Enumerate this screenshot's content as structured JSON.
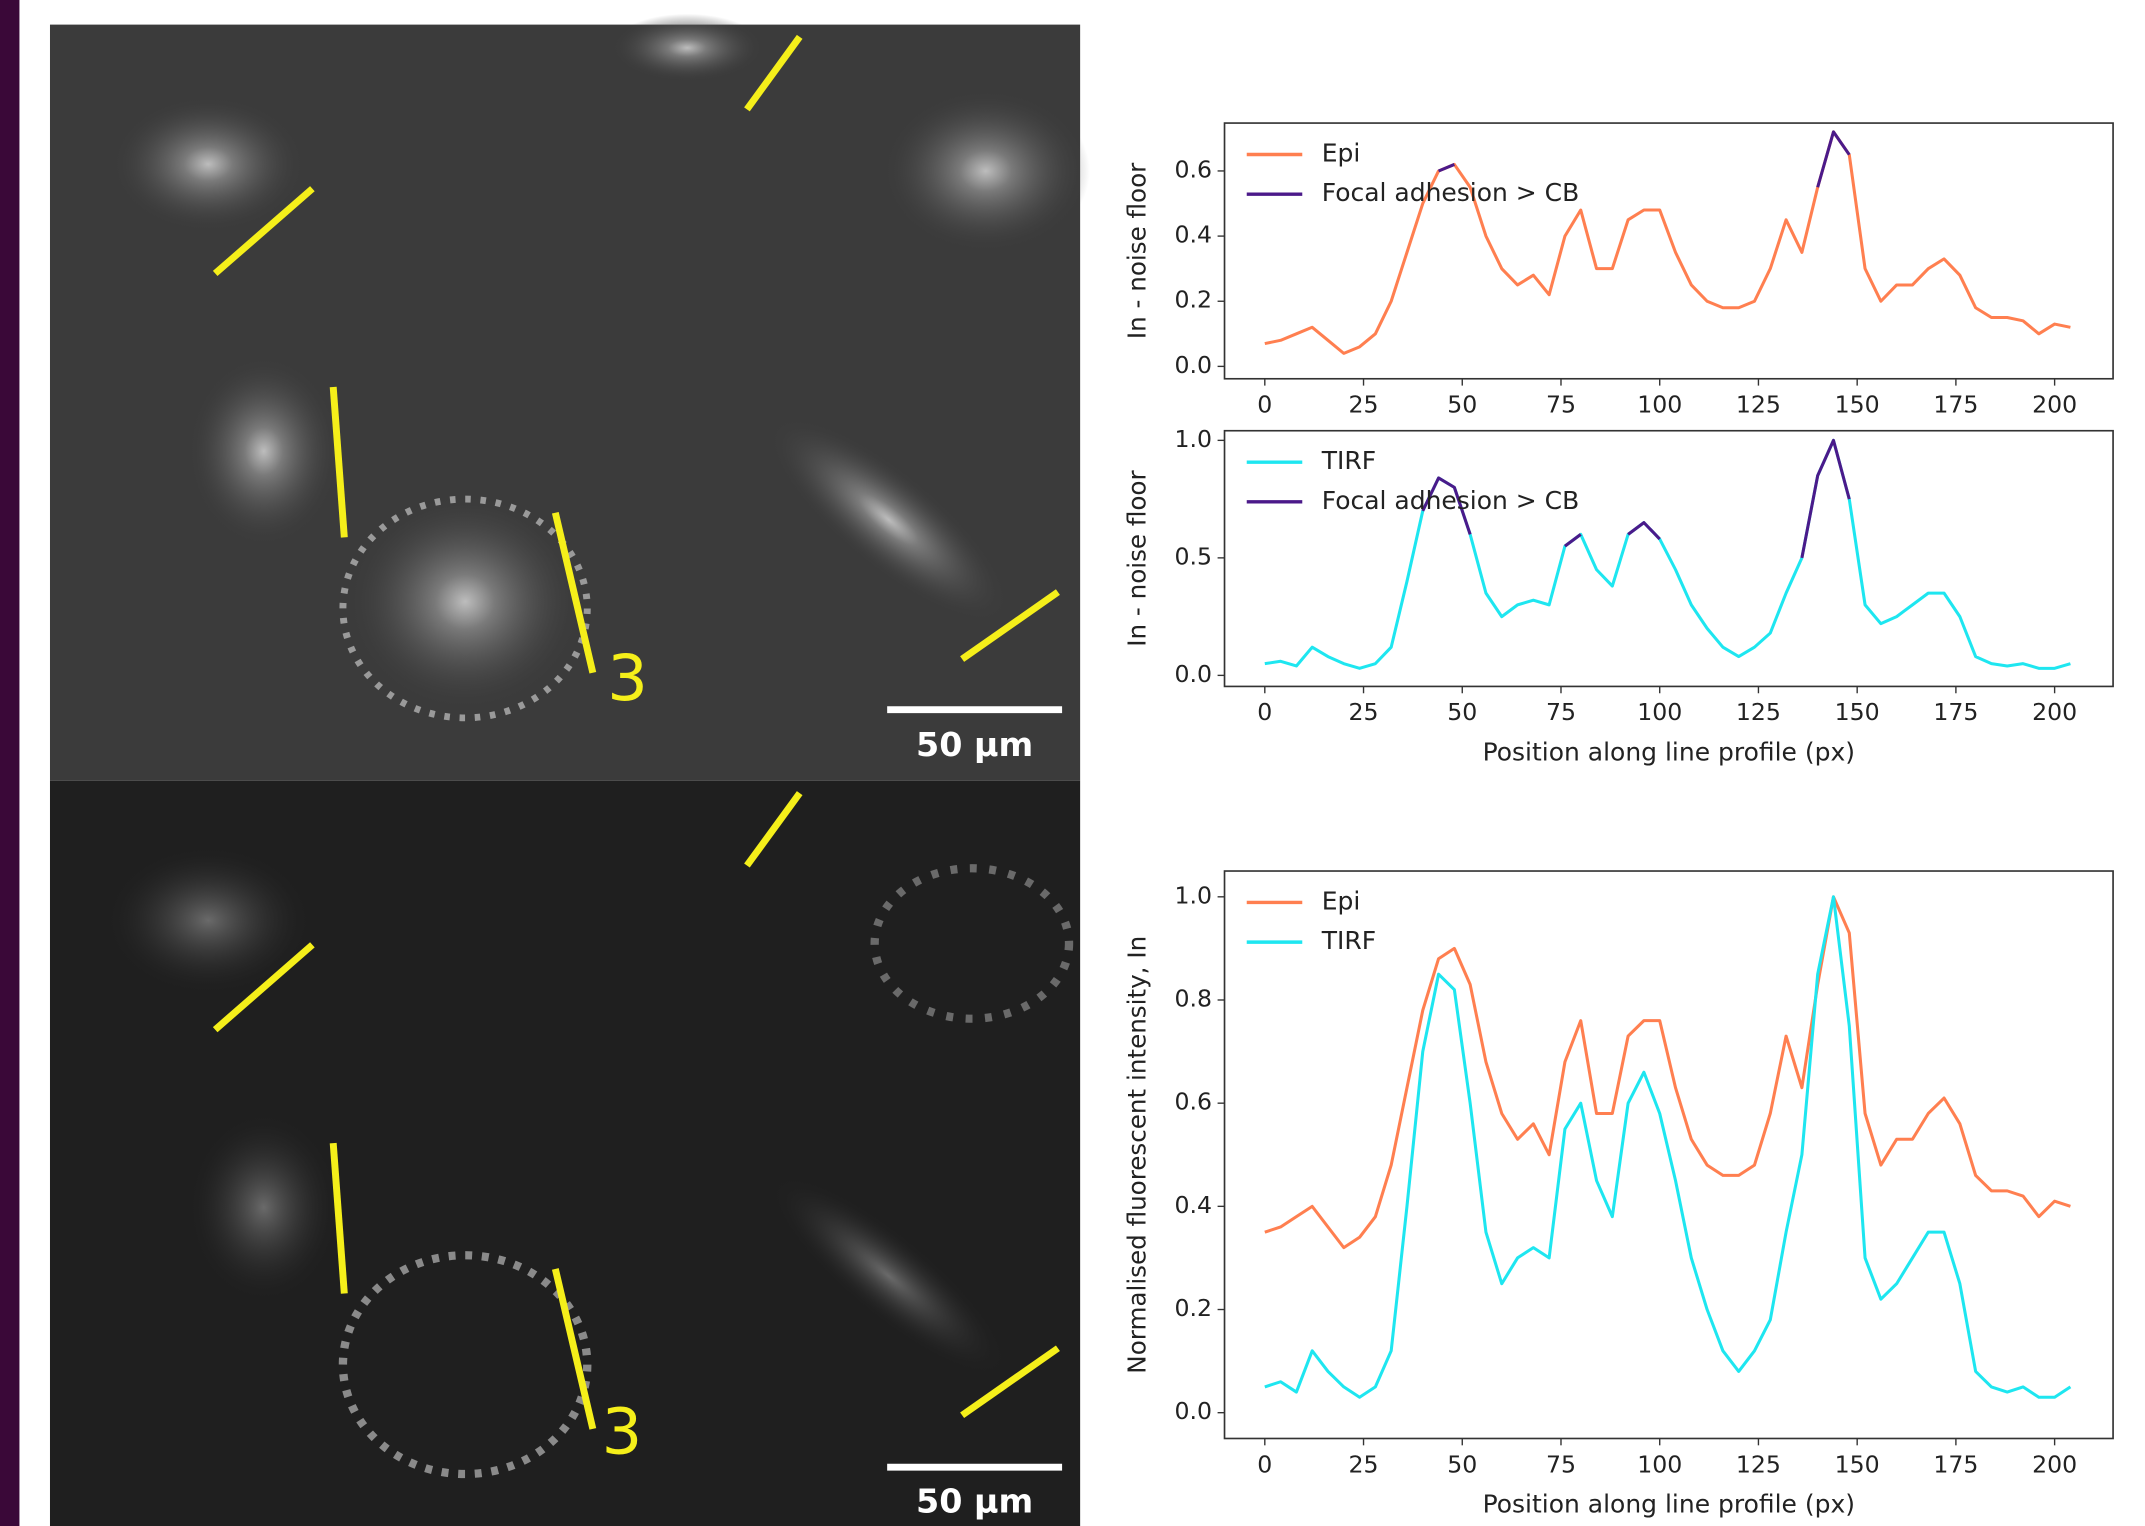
{
  "micrographs": [
    {
      "label": "3",
      "scale_bar": "50 µm"
    },
    {
      "label": "3",
      "scale_bar": "50 µm"
    }
  ],
  "chart_data": [
    {
      "type": "line",
      "ylabel": "In - noise floor",
      "legend": "upper left",
      "xlim": [
        -10.2,
        214.8
      ],
      "ylim": [
        -0.038,
        0.747
      ],
      "xticks": [
        0,
        25,
        50,
        75,
        100,
        125,
        150,
        175,
        200
      ],
      "yticks": [
        {
          "value": 0,
          "label": "0.0"
        },
        {
          "value": 0.2,
          "label": "0.2"
        },
        {
          "value": 0.4,
          "label": "0.4"
        },
        {
          "value": 0.6,
          "label": "0.6"
        }
      ],
      "x": [
        0,
        4,
        8,
        12,
        16,
        20,
        24,
        28,
        32,
        36,
        40,
        44,
        48,
        52,
        56,
        60,
        64,
        68,
        72,
        76,
        80,
        84,
        88,
        92,
        96,
        100,
        104,
        108,
        112,
        116,
        120,
        124,
        128,
        132,
        136,
        140,
        144,
        148,
        152,
        156,
        160,
        164,
        168,
        172,
        176,
        180,
        184,
        188,
        192,
        196,
        200,
        204
      ],
      "series": [
        {
          "name": "Epi",
          "color": "#ff7f50",
          "values": [
            0.07,
            0.08,
            0.1,
            0.12,
            0.08,
            0.04,
            0.06,
            0.1,
            0.2,
            0.35,
            0.5,
            0.6,
            0.62,
            0.55,
            0.4,
            0.3,
            0.25,
            0.28,
            0.22,
            0.4,
            0.48,
            0.3,
            0.3,
            0.45,
            0.48,
            0.48,
            0.35,
            0.25,
            0.2,
            0.18,
            0.18,
            0.2,
            0.3,
            0.45,
            0.35,
            0.55,
            0.72,
            0.65,
            0.3,
            0.2,
            0.25,
            0.25,
            0.3,
            0.33,
            0.28,
            0.18,
            0.15,
            0.15,
            0.14,
            0.1,
            0.13,
            0.12
          ]
        },
        {
          "name": "Focal adhesion > CB",
          "color": "#4b1a8a",
          "values": [
            null,
            null,
            null,
            null,
            null,
            null,
            null,
            null,
            null,
            null,
            null,
            0.6,
            0.62,
            null,
            null,
            null,
            null,
            null,
            null,
            null,
            null,
            null,
            null,
            null,
            null,
            null,
            null,
            null,
            null,
            null,
            null,
            null,
            null,
            null,
            null,
            0.55,
            0.72,
            0.65,
            null,
            null,
            null,
            null,
            null,
            null,
            null,
            null,
            null,
            null,
            null,
            null,
            null,
            null
          ]
        }
      ]
    },
    {
      "type": "line",
      "ylabel": "In - noise floor",
      "xlabel": "Position along line profile (px)",
      "legend": "upper left",
      "xlim": [
        -10.2,
        214.8
      ],
      "ylim": [
        -0.047,
        1.041
      ],
      "xticks": [
        0,
        25,
        50,
        75,
        100,
        125,
        150,
        175,
        200
      ],
      "yticks": [
        {
          "value": 0,
          "label": "0.0"
        },
        0.5,
        {
          "value": 1,
          "label": "1.0"
        }
      ],
      "x": [
        0,
        4,
        8,
        12,
        16,
        20,
        24,
        28,
        32,
        36,
        40,
        44,
        48,
        52,
        56,
        60,
        64,
        68,
        72,
        76,
        80,
        84,
        88,
        92,
        96,
        100,
        104,
        108,
        112,
        116,
        120,
        124,
        128,
        132,
        136,
        140,
        144,
        148,
        152,
        156,
        160,
        164,
        168,
        172,
        176,
        180,
        184,
        188,
        192,
        196,
        200,
        204
      ],
      "series": [
        {
          "name": "TIRF",
          "color": "#1ee6f0",
          "values": [
            0.05,
            0.06,
            0.04,
            0.12,
            0.08,
            0.05,
            0.03,
            0.05,
            0.12,
            0.4,
            0.7,
            0.84,
            0.8,
            0.6,
            0.35,
            0.25,
            0.3,
            0.32,
            0.3,
            0.55,
            0.6,
            0.45,
            0.38,
            0.6,
            0.65,
            0.58,
            0.45,
            0.3,
            0.2,
            0.12,
            0.08,
            0.12,
            0.18,
            0.35,
            0.5,
            0.85,
            1.0,
            0.75,
            0.3,
            0.22,
            0.25,
            0.3,
            0.35,
            0.35,
            0.25,
            0.08,
            0.05,
            0.04,
            0.05,
            0.03,
            0.03,
            0.05
          ]
        },
        {
          "name": "Focal adhesion > CB",
          "color": "#4b1a8a",
          "values": [
            null,
            null,
            null,
            null,
            null,
            null,
            null,
            null,
            null,
            null,
            0.7,
            0.84,
            0.8,
            0.6,
            null,
            null,
            null,
            null,
            null,
            0.55,
            0.6,
            null,
            null,
            0.6,
            0.65,
            0.58,
            null,
            null,
            null,
            null,
            null,
            null,
            null,
            null,
            0.5,
            0.85,
            1.0,
            0.75,
            null,
            null,
            null,
            null,
            null,
            null,
            null,
            null,
            null,
            null,
            null,
            null,
            null,
            null
          ]
        }
      ]
    },
    {
      "type": "line",
      "ylabel": "Normalised fluorescent intensity, In",
      "xlabel": "Position along line profile (px)",
      "legend": "upper left",
      "xlim": [
        -10.2,
        214.8
      ],
      "ylim": [
        -0.05,
        1.05
      ],
      "xticks": [
        0,
        25,
        50,
        75,
        100,
        125,
        150,
        175,
        200
      ],
      "yticks": [
        {
          "value": 0,
          "label": "0.0"
        },
        0.2,
        0.4,
        0.6,
        0.8,
        {
          "value": 1,
          "label": "1.0"
        }
      ],
      "x": [
        0,
        4,
        8,
        12,
        16,
        20,
        24,
        28,
        32,
        36,
        40,
        44,
        48,
        52,
        56,
        60,
        64,
        68,
        72,
        76,
        80,
        84,
        88,
        92,
        96,
        100,
        104,
        108,
        112,
        116,
        120,
        124,
        128,
        132,
        136,
        140,
        144,
        148,
        152,
        156,
        160,
        164,
        168,
        172,
        176,
        180,
        184,
        188,
        192,
        196,
        200,
        204
      ],
      "series": [
        {
          "name": "Epi",
          "color": "#ff7f50",
          "values": [
            0.35,
            0.36,
            0.38,
            0.4,
            0.36,
            0.32,
            0.34,
            0.38,
            0.48,
            0.63,
            0.78,
            0.88,
            0.9,
            0.83,
            0.68,
            0.58,
            0.53,
            0.56,
            0.5,
            0.68,
            0.76,
            0.58,
            0.58,
            0.73,
            0.76,
            0.76,
            0.63,
            0.53,
            0.48,
            0.46,
            0.46,
            0.48,
            0.58,
            0.73,
            0.63,
            0.83,
            1.0,
            0.93,
            0.58,
            0.48,
            0.53,
            0.53,
            0.58,
            0.61,
            0.56,
            0.46,
            0.43,
            0.43,
            0.42,
            0.38,
            0.41,
            0.4
          ]
        },
        {
          "name": "TIRF",
          "color": "#1ee6f0",
          "values": [
            0.05,
            0.06,
            0.04,
            0.12,
            0.08,
            0.05,
            0.03,
            0.05,
            0.12,
            0.4,
            0.7,
            0.85,
            0.82,
            0.6,
            0.35,
            0.25,
            0.3,
            0.32,
            0.3,
            0.55,
            0.6,
            0.45,
            0.38,
            0.6,
            0.66,
            0.58,
            0.45,
            0.3,
            0.2,
            0.12,
            0.08,
            0.12,
            0.18,
            0.35,
            0.5,
            0.85,
            1.0,
            0.75,
            0.3,
            0.22,
            0.25,
            0.3,
            0.35,
            0.35,
            0.25,
            0.08,
            0.05,
            0.04,
            0.05,
            0.03,
            0.03,
            0.05
          ]
        }
      ]
    }
  ]
}
